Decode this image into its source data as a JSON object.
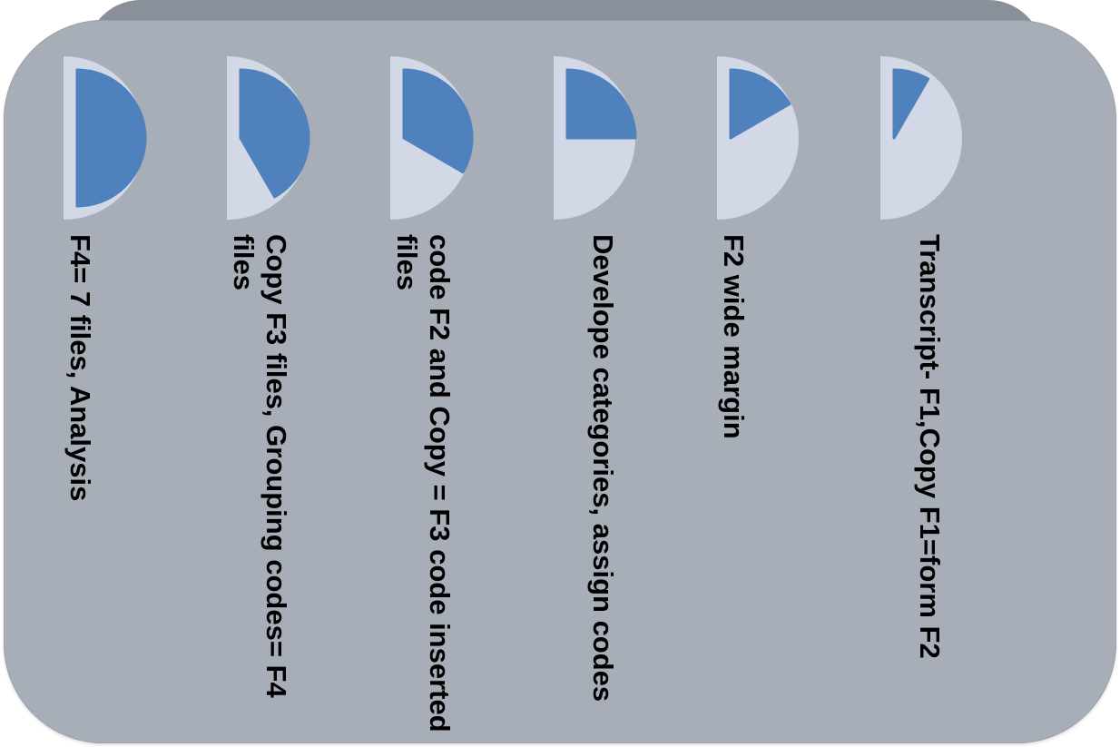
{
  "colors": {
    "panel": "#a8aeb8",
    "panel_top": "#8a9099",
    "disc": "#d3d8e6",
    "fill": "#4f81bd",
    "text": "#000000"
  },
  "steps": [
    {
      "label": "F4= 7 files, Analysis",
      "progress": 1.0
    },
    {
      "label": "Copy F3 files, Grouping codes= F4 files",
      "progress": 0.833
    },
    {
      "label": "code F2 and Copy = F3 code inserted files",
      "progress": 0.667
    },
    {
      "label": "Develope categories, assign codes",
      "progress": 0.5
    },
    {
      "label": "F2 wide margin",
      "progress": 0.333
    },
    {
      "label": "Transcript- F1,Copy F1=form F2",
      "progress": 0.167
    }
  ]
}
